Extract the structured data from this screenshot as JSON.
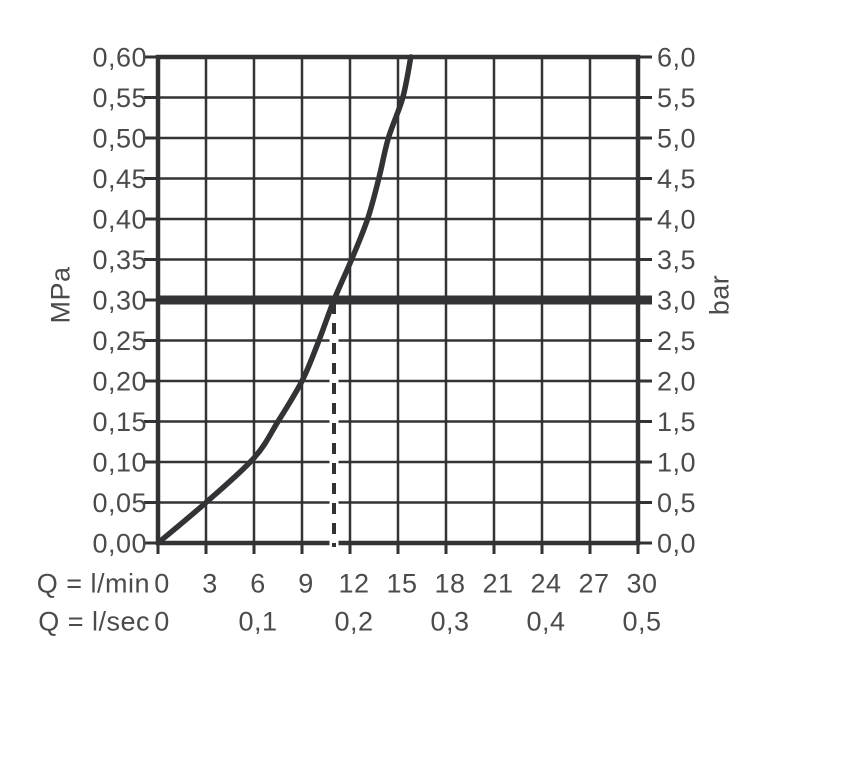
{
  "colors": {
    "line": "#333336",
    "text": "#4b4b4d",
    "curve": "#333336",
    "reference_line": "#333336",
    "background": "#ffffff"
  },
  "chart_data": {
    "type": "line",
    "title": "",
    "grid": "on",
    "x_axis_lmin": {
      "label": "Q = l/min",
      "unit": "l/min",
      "min": 0,
      "max": 30,
      "tick_step": 3,
      "tick_labels": [
        "0",
        "3",
        "6",
        "9",
        "12",
        "15",
        "18",
        "21",
        "24",
        "27",
        "30"
      ]
    },
    "x_axis_lsec": {
      "label": "Q = l/sec",
      "unit": "l/sec",
      "ticks": [
        {
          "value_lmin": 0,
          "label": "0"
        },
        {
          "value_lmin": 6,
          "label": "0,1"
        },
        {
          "value_lmin": 12,
          "label": "0,2"
        },
        {
          "value_lmin": 18,
          "label": "0,3"
        },
        {
          "value_lmin": 24,
          "label": "0,4"
        },
        {
          "value_lmin": 30,
          "label": "0,5"
        }
      ]
    },
    "y_axis_left": {
      "label": "MPa",
      "min": 0,
      "max": 0.6,
      "tick_step": 0.05,
      "tick_labels": [
        "0,60",
        "0,55",
        "0,50",
        "0,45",
        "0,40",
        "0,35",
        "0,30",
        "0,25",
        "0,20",
        "0,15",
        "0,10",
        "0,05",
        "0,00"
      ]
    },
    "y_axis_right": {
      "label": "bar",
      "min": 0,
      "max": 6,
      "tick_step": 0.5,
      "tick_labels": [
        "6,0",
        "5,5",
        "5,0",
        "4,5",
        "4,0",
        "3,5",
        "3,0",
        "2,5",
        "2,0",
        "1,5",
        "1,0",
        "0,5",
        "0,0"
      ]
    },
    "series": [
      {
        "name": "flow-pressure-curve",
        "points_lmin_mpa": [
          [
            0,
            0
          ],
          [
            3,
            0.05
          ],
          [
            6,
            0.105
          ],
          [
            7.5,
            0.15
          ],
          [
            9,
            0.2
          ],
          [
            10,
            0.247
          ],
          [
            11,
            0.3
          ],
          [
            12.1,
            0.35
          ],
          [
            13.1,
            0.4
          ],
          [
            13.8,
            0.45
          ],
          [
            14.4,
            0.5
          ],
          [
            15.3,
            0.55
          ],
          [
            15.8,
            0.6
          ]
        ]
      }
    ],
    "reference_line": {
      "orientation": "horizontal",
      "value_mpa": 0.3,
      "value_bar": 3.0
    },
    "guide_line": {
      "orientation": "vertical",
      "style": "dashed",
      "value_lmin": 11
    }
  }
}
